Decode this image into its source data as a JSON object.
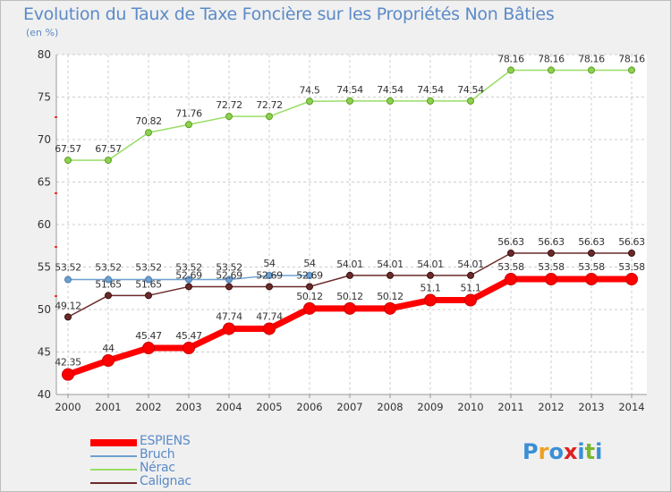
{
  "title": "Evolution du Taux de Taxe Foncière sur les Propriétés Non Bâties",
  "unit_label": "(en %)",
  "logo": [
    "P",
    "r",
    "o",
    "x",
    "i",
    "t",
    "i"
  ],
  "logo_colors": [
    "#3a8fd6",
    "#f0a020",
    "#3a8fd6",
    "#e02020",
    "#3a8fd6",
    "#7ab82e",
    "#3a8fd6"
  ],
  "colors": {
    "ESPIENS": "#ff0000",
    "Bruch": "#6fa0d0",
    "Nérac": "#99dd66",
    "Calignac": "#6b2a2a"
  },
  "chart_data": {
    "type": "line",
    "title": "Evolution du Taux de Taxe Foncière sur les Propriétés Non Bâties",
    "ylabel": "(en %)",
    "xlabel": "",
    "x": [
      "2000",
      "2001",
      "2002",
      "2003",
      "2004",
      "2005",
      "2006",
      "2007",
      "2008",
      "2009",
      "2010",
      "2011",
      "2012",
      "2013",
      "2014"
    ],
    "ylim": [
      40,
      80
    ],
    "yticks": [
      40,
      45,
      50,
      55,
      60,
      65,
      70,
      75,
      80
    ],
    "grid": true,
    "series": [
      {
        "name": "ESPIENS",
        "values": [
          42.35,
          44,
          45.47,
          45.47,
          47.74,
          47.74,
          50.12,
          50.12,
          50.12,
          51.1,
          51.1,
          53.58,
          53.58,
          53.58,
          53.58
        ]
      },
      {
        "name": "Bruch",
        "values": [
          53.52,
          53.52,
          53.52,
          53.52,
          53.52,
          54,
          54,
          null,
          null,
          null,
          null,
          null,
          null,
          null,
          null
        ]
      },
      {
        "name": "Nérac",
        "values": [
          67.57,
          67.57,
          70.82,
          71.76,
          72.72,
          72.72,
          74.5,
          74.54,
          74.54,
          74.54,
          74.54,
          78.16,
          78.16,
          78.16,
          78.16
        ]
      },
      {
        "name": "Calignac",
        "values": [
          49.12,
          51.65,
          51.65,
          52.69,
          52.69,
          52.69,
          52.69,
          54.01,
          54.01,
          54.01,
          54.01,
          56.63,
          56.63,
          56.63,
          56.63
        ]
      }
    ]
  }
}
